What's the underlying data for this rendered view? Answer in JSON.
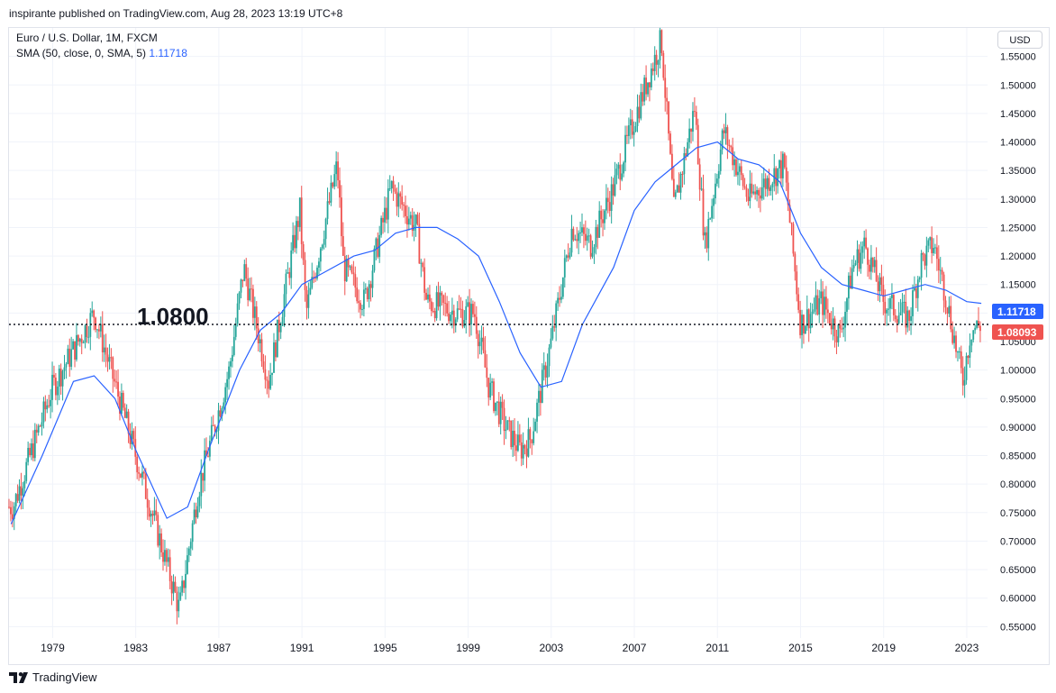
{
  "header": {
    "published_text": "inspirante published on TradingView.com, Aug 28, 2023 13:19 UTC+8"
  },
  "legend": {
    "symbol_line": "Euro / U.S. Dollar, 1M, FXCM",
    "sma_label": "SMA (50, close, 0, SMA, 5)",
    "sma_value": "1.11718"
  },
  "currency_button": "USD",
  "annotation": {
    "level_label": "1.0800"
  },
  "price_labels": {
    "sma_label": "1.11718",
    "last_label": "1.08093"
  },
  "footer": {
    "brand": "TradingView"
  },
  "colors": {
    "up": "#26a69a",
    "down": "#ef5350",
    "sma": "#2962ff",
    "grid": "#f0f3fa",
    "text": "#131722"
  },
  "chart_data": {
    "type": "candlestick",
    "title": "Euro / U.S. Dollar, 1M, FXCM",
    "x": [
      1977.1,
      1979,
      1981,
      1983,
      1985.1,
      1986,
      1987.5,
      1988.2,
      1989.4,
      1990.9,
      1991.2,
      1992.7,
      1993,
      1994,
      1995.3,
      1996.5,
      1997,
      1998.5,
      1999.3,
      2000,
      2000.8,
      2001.5,
      2002,
      2003,
      2004,
      2004.9,
      2006,
      2007,
      2008.3,
      2008.9,
      2009.9,
      2010.4,
      2011.3,
      2012.5,
      2014.2,
      2015,
      2016,
      2016.9,
      2017.5,
      2018.1,
      2019,
      2020.2,
      2020.8,
      2021.4,
      2022,
      2022.8,
      2023.2,
      2023.7
    ],
    "close": [
      0.76,
      0.97,
      1.1,
      0.85,
      0.58,
      0.79,
      1.0,
      1.18,
      0.98,
      1.28,
      1.1,
      1.36,
      1.18,
      1.12,
      1.32,
      1.25,
      1.12,
      1.1,
      1.1,
      0.97,
      0.9,
      0.86,
      0.88,
      1.05,
      1.25,
      1.22,
      1.32,
      1.44,
      1.58,
      1.28,
      1.46,
      1.22,
      1.42,
      1.3,
      1.36,
      1.08,
      1.12,
      1.06,
      1.18,
      1.22,
      1.12,
      1.09,
      1.19,
      1.22,
      1.13,
      0.98,
      1.07,
      1.08
    ],
    "sma_x": [
      1977,
      1978.5,
      1980,
      1981,
      1982,
      1983,
      1984.5,
      1985.5,
      1986.5,
      1988,
      1989,
      1990,
      1991,
      1992,
      1993.5,
      1994.5,
      1995.5,
      1996.5,
      1997.5,
      1998.5,
      1999.5,
      2000.5,
      2001.5,
      2002.5,
      2003.5,
      2004.5,
      2006,
      2007,
      2008,
      2009,
      2010,
      2011,
      2012,
      2013,
      2014,
      2015,
      2016,
      2017,
      2018,
      2019,
      2020,
      2021,
      2022,
      2023,
      2023.7
    ],
    "sma": [
      0.73,
      0.85,
      0.98,
      0.99,
      0.95,
      0.86,
      0.74,
      0.76,
      0.86,
      1.0,
      1.07,
      1.1,
      1.15,
      1.17,
      1.2,
      1.21,
      1.24,
      1.25,
      1.25,
      1.23,
      1.2,
      1.12,
      1.03,
      0.97,
      0.98,
      1.08,
      1.18,
      1.28,
      1.33,
      1.36,
      1.39,
      1.4,
      1.37,
      1.36,
      1.33,
      1.24,
      1.18,
      1.15,
      1.14,
      1.13,
      1.14,
      1.15,
      1.14,
      1.12,
      1.117
    ],
    "horizontal_line": 1.08,
    "x_ticks": [
      "1979",
      "1983",
      "1987",
      "1991",
      "1995",
      "1999",
      "2003",
      "2007",
      "2011",
      "2015",
      "2019",
      "2023"
    ],
    "y_ticks": [
      "1.55000",
      "1.50000",
      "1.45000",
      "1.40000",
      "1.35000",
      "1.30000",
      "1.25000",
      "1.20000",
      "1.15000",
      "1.10000",
      "1.05000",
      "1.00000",
      "0.95000",
      "0.90000",
      "0.85000",
      "0.80000",
      "0.75000",
      "0.70000",
      "0.65000",
      "0.60000",
      "0.55000"
    ],
    "xlim": [
      1976.9,
      2024
    ],
    "ylim": [
      0.53,
      1.6
    ],
    "grid": true,
    "legend": "top-left"
  }
}
